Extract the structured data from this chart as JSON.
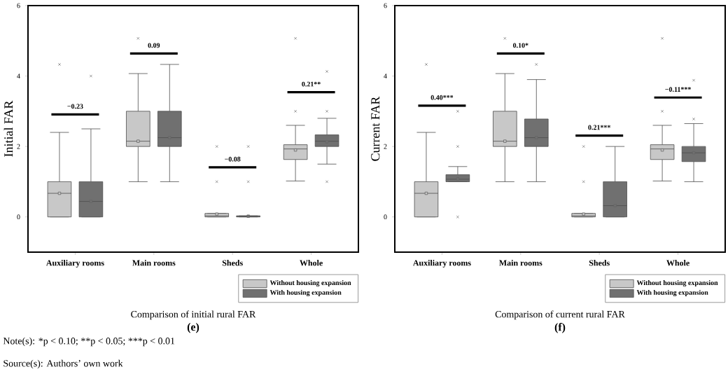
{
  "chart_data": [
    {
      "type": "box",
      "ylabel": "Initial FAR",
      "xlabel": "Comparison of initial rural FAR",
      "categories": [
        "Auxiliary rooms",
        "Main rooms",
        "Sheds",
        "Whole"
      ],
      "ylim": [
        -1,
        6
      ],
      "yticks": [
        0,
        2,
        4,
        6
      ],
      "legend": "bottom right",
      "marker": "square",
      "series": [
        {
          "name": "Without housing expansion",
          "color": "#c8c8c8",
          "boxes": [
            {
              "low": 0,
              "q1": 0,
              "median": 0.67,
              "q3": 1,
              "high": 2.4,
              "mean": 0.67,
              "outliers": [
                4.33
              ]
            },
            {
              "low": 1,
              "q1": 2,
              "median": 2.15,
              "q3": 3,
              "high": 4.07,
              "mean": 2.15,
              "outliers": [
                5.07
              ]
            },
            {
              "low": 0,
              "q1": 0,
              "median": 0.03,
              "q3": 0.1,
              "high": 0.1,
              "mean": 0.08,
              "outliers": [
                1,
                2
              ]
            },
            {
              "low": 1.02,
              "q1": 1.63,
              "median": 1.93,
              "q3": 2.05,
              "high": 2.6,
              "mean": 1.9,
              "outliers": [
                3,
                5.07
              ]
            }
          ]
        },
        {
          "name": "With housing expansion",
          "color": "#707070",
          "boxes": [
            {
              "low": 0,
              "q1": 0,
              "median": 0.44,
              "q3": 1,
              "high": 2.5,
              "mean": 0.44,
              "outliers": [
                4
              ]
            },
            {
              "low": 1,
              "q1": 2,
              "median": 2.25,
              "q3": 3,
              "high": 4.33,
              "mean": 2.25
            },
            {
              "low": 0,
              "q1": 0,
              "median": 0.02,
              "q3": 0.03,
              "high": 0.03,
              "mean": 0.02,
              "outliers": [
                1,
                2
              ]
            },
            {
              "low": 1.5,
              "q1": 2,
              "median": 2.15,
              "q3": 2.33,
              "high": 2.8,
              "mean": 2.13,
              "outliers": [
                1,
                3,
                4.13
              ]
            }
          ]
        }
      ],
      "annotations": [
        "−0.23",
        "0.09",
        "−0.08",
        "0.21**",
        "(e)",
        "Note(s): *p < 0.10;",
        "**p < 0.05;",
        "***p < 0.01",
        "Source(s): Authors’ own work"
      ]
    },
    {
      "type": "box",
      "ylabel": "Current FAR",
      "xlabel": "Comparison of current rural FAR",
      "categories": [
        "Auxiliary rooms",
        "Main rooms",
        "Sheds",
        "Whole"
      ],
      "ylim": [
        -1,
        6
      ],
      "yticks": [
        0,
        2,
        4,
        6
      ],
      "legend": "bottom right",
      "marker": "square",
      "series": [
        {
          "name": "Without housing expansion",
          "color": "#c8c8c8",
          "boxes": [
            {
              "low": 0,
              "q1": 0,
              "median": 0.67,
              "q3": 1,
              "high": 2.4,
              "mean": 0.67,
              "outliers": [
                4.33
              ]
            },
            {
              "low": 1,
              "q1": 2,
              "median": 2.15,
              "q3": 3,
              "high": 4.07,
              "mean": 2.15,
              "outliers": [
                5.07
              ]
            },
            {
              "low": 0,
              "q1": 0,
              "median": 0.03,
              "q3": 0.1,
              "high": 0.1,
              "mean": 0.08,
              "outliers": [
                1,
                2
              ]
            },
            {
              "low": 1.02,
              "q1": 1.63,
              "median": 1.93,
              "q3": 2.05,
              "high": 2.6,
              "mean": 1.9,
              "outliers": [
                3,
                5.07
              ]
            }
          ]
        },
        {
          "name": "With housing expansion",
          "color": "#707070",
          "boxes": [
            {
              "low": 1,
              "q1": 1,
              "median": 1.07,
              "q3": 1.2,
              "high": 1.43,
              "mean": 1.08,
              "outliers": [
                0,
                2,
                3
              ]
            },
            {
              "low": 1,
              "q1": 2,
              "median": 2.25,
              "q3": 2.78,
              "high": 3.9,
              "mean": 2.25,
              "outliers": [
                4.33
              ]
            },
            {
              "low": 0,
              "q1": 0,
              "median": 0.32,
              "q3": 1,
              "high": 2,
              "mean": 0.32
            },
            {
              "low": 1,
              "q1": 1.57,
              "median": 1.82,
              "q3": 2,
              "high": 2.65,
              "mean": 1.82,
              "outliers": [
                2.78,
                3.88
              ]
            }
          ]
        }
      ],
      "annotations": [
        "0.40***",
        "0.10*",
        "0.21***",
        "−0.11***",
        "(f)"
      ]
    }
  ]
}
